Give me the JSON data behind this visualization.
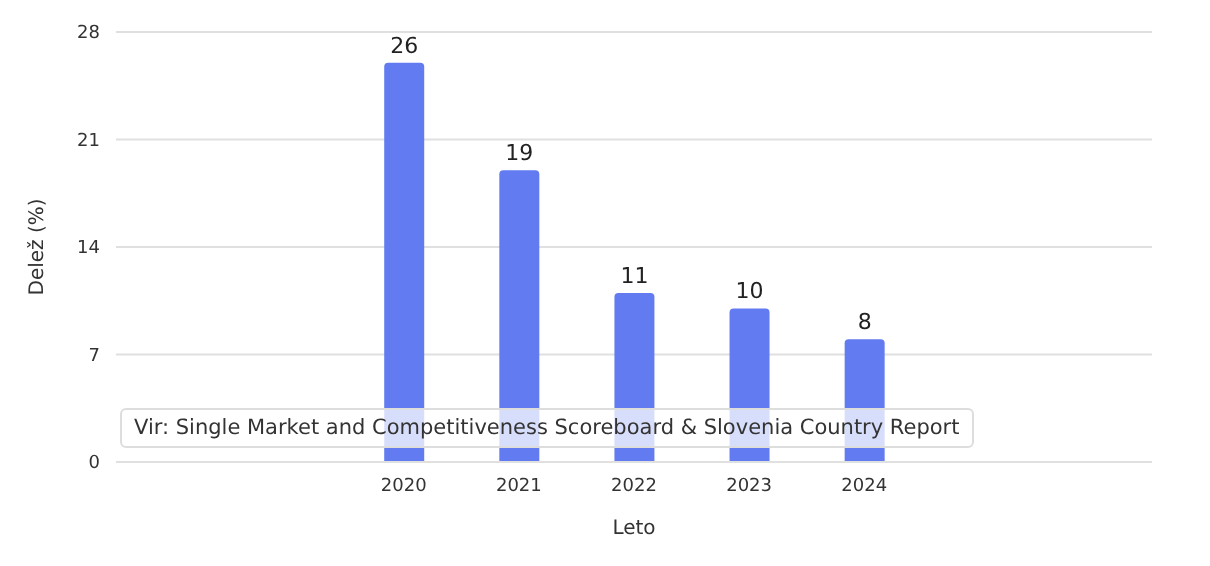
{
  "chart_data": {
    "type": "bar",
    "xlabel": "Leto",
    "ylabel": "Delež (%)",
    "categories": [
      null,
      null,
      "2020",
      "2021",
      "2022",
      "2023",
      "2024",
      null,
      null
    ],
    "values": [
      null,
      null,
      26,
      19,
      11,
      10,
      8,
      null,
      null
    ],
    "color": "#627bf0",
    "ylim": [
      0,
      28
    ],
    "yticks": [
      0,
      7,
      14,
      21,
      28
    ],
    "grid": "y",
    "data_labels": true,
    "annotations": [
      "Vir: Single Market and Competitiveness Scoreboard & Slovenia Country Report"
    ]
  }
}
